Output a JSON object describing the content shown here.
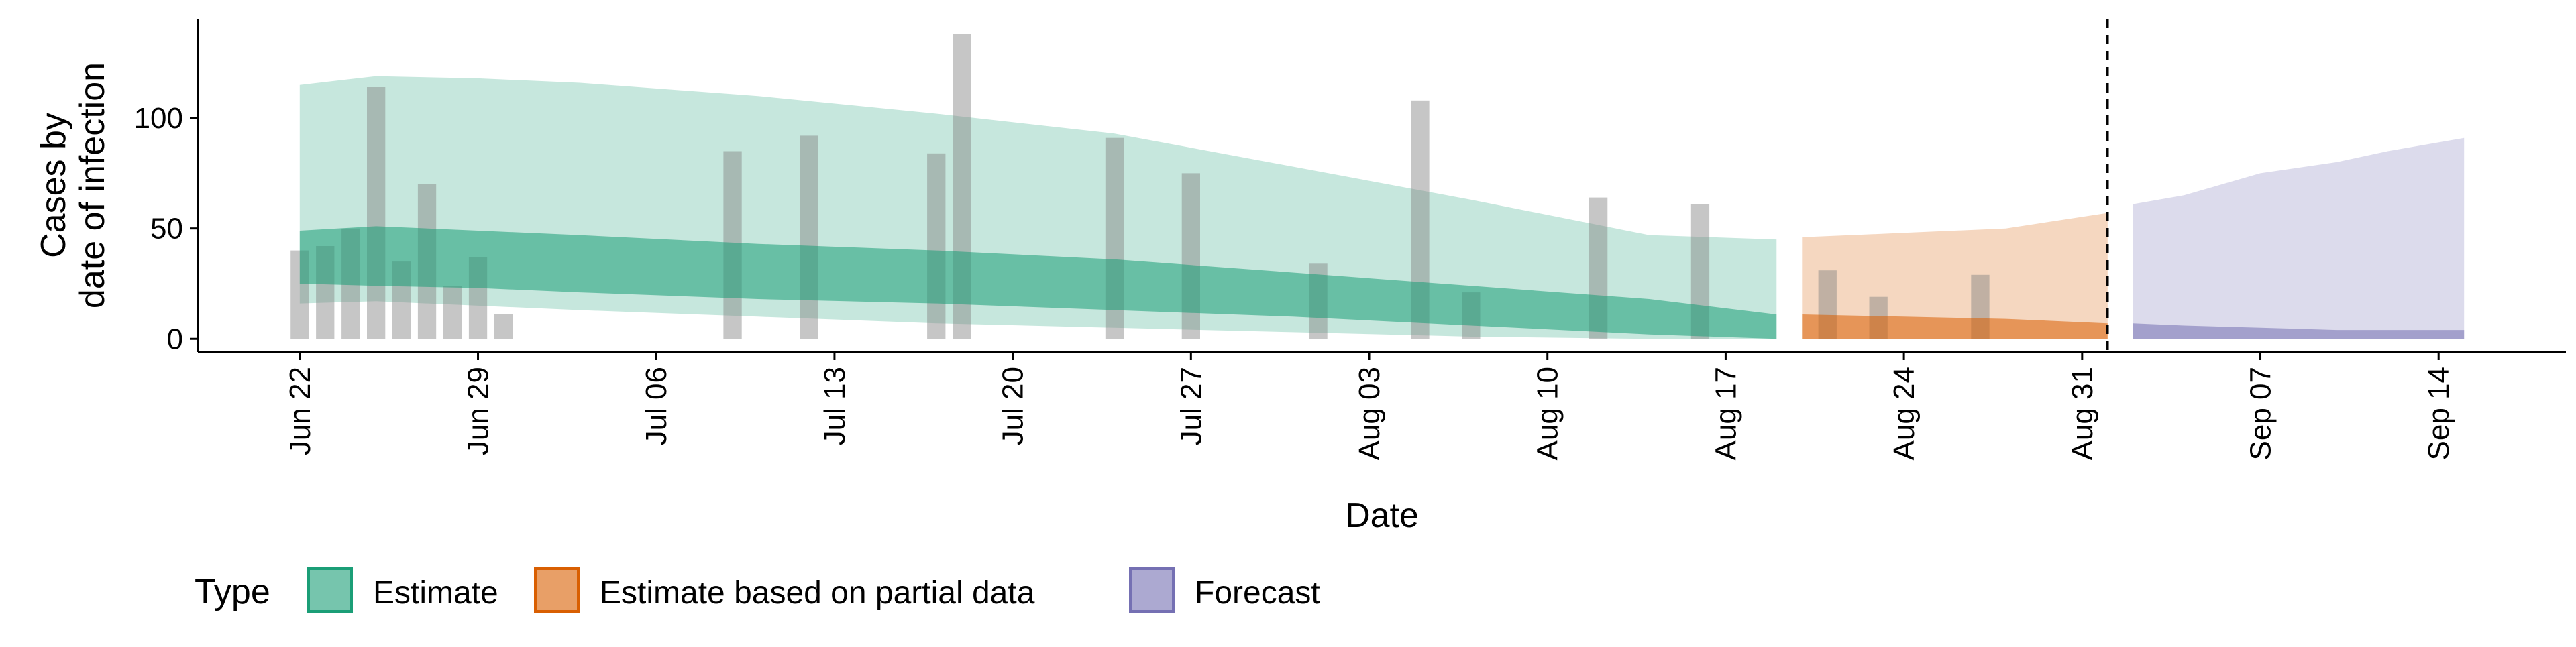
{
  "chart_data": {
    "type": "area",
    "xlabel": "Date",
    "ylabel_lines": [
      "Cases by",
      "date of infection"
    ],
    "y_ticks": [
      0,
      50,
      100
    ],
    "ylim": [
      -6,
      145
    ],
    "xlim": [
      "2020-06-18",
      "2020-09-19"
    ],
    "x_ticks": [
      {
        "date": "2020-06-22",
        "label": "Jun 22"
      },
      {
        "date": "2020-06-29",
        "label": "Jun 29"
      },
      {
        "date": "2020-07-06",
        "label": "Jul 06"
      },
      {
        "date": "2020-07-13",
        "label": "Jul 13"
      },
      {
        "date": "2020-07-20",
        "label": "Jul 20"
      },
      {
        "date": "2020-07-27",
        "label": "Jul 27"
      },
      {
        "date": "2020-08-03",
        "label": "Aug 03"
      },
      {
        "date": "2020-08-10",
        "label": "Aug 10"
      },
      {
        "date": "2020-08-17",
        "label": "Aug 17"
      },
      {
        "date": "2020-08-24",
        "label": "Aug 24"
      },
      {
        "date": "2020-08-31",
        "label": "Aug 31"
      },
      {
        "date": "2020-09-07",
        "label": "Sep 07"
      },
      {
        "date": "2020-09-14",
        "label": "Sep 14"
      }
    ],
    "vline_date": "2020-09-01",
    "grid": false,
    "legend": {
      "title": "Type",
      "placement": "bottom",
      "items": [
        {
          "label": "Estimate",
          "color": "#1B9E77"
        },
        {
          "label": "Estimate based on partial data",
          "color": "#D95F02"
        },
        {
          "label": "Forecast",
          "color": "#7570B3"
        }
      ]
    },
    "reported_cases": {
      "color": "#808080",
      "points": [
        {
          "date": "2020-06-22",
          "value": 40
        },
        {
          "date": "2020-06-23",
          "value": 42
        },
        {
          "date": "2020-06-24",
          "value": 50
        },
        {
          "date": "2020-06-25",
          "value": 114
        },
        {
          "date": "2020-06-26",
          "value": 35
        },
        {
          "date": "2020-06-27",
          "value": 70
        },
        {
          "date": "2020-06-28",
          "value": 24
        },
        {
          "date": "2020-06-29",
          "value": 37
        },
        {
          "date": "2020-06-30",
          "value": 11
        },
        {
          "date": "2020-07-09",
          "value": 85
        },
        {
          "date": "2020-07-12",
          "value": 92
        },
        {
          "date": "2020-07-17",
          "value": 84
        },
        {
          "date": "2020-07-18",
          "value": 138
        },
        {
          "date": "2020-07-24",
          "value": 91
        },
        {
          "date": "2020-07-27",
          "value": 75
        },
        {
          "date": "2020-08-01",
          "value": 34
        },
        {
          "date": "2020-08-05",
          "value": 108
        },
        {
          "date": "2020-08-07",
          "value": 21
        },
        {
          "date": "2020-08-12",
          "value": 64
        },
        {
          "date": "2020-08-16",
          "value": 61
        },
        {
          "date": "2020-08-21",
          "value": 31
        },
        {
          "date": "2020-08-23",
          "value": 19
        },
        {
          "date": "2020-08-27",
          "value": 29
        }
      ]
    },
    "series": [
      {
        "name": "Estimate",
        "color": "#1B9E77",
        "x": [
          "2020-06-22",
          "2020-06-25",
          "2020-06-29",
          "2020-07-03",
          "2020-07-10",
          "2020-07-17",
          "2020-07-24",
          "2020-07-31",
          "2020-08-07",
          "2020-08-14",
          "2020-08-19"
        ],
        "outer_upper": [
          115,
          119,
          118,
          116,
          110,
          102,
          93,
          78,
          63,
          47,
          45
        ],
        "outer_lower": [
          16,
          17,
          15,
          13,
          10,
          7,
          5,
          3,
          1,
          0,
          0
        ],
        "inner_upper": [
          49,
          51,
          49,
          47,
          43,
          40,
          36,
          30,
          24,
          18,
          11
        ],
        "inner_lower": [
          25,
          24,
          23,
          21,
          18,
          16,
          13,
          10,
          6,
          2,
          0
        ]
      },
      {
        "name": "Estimate based on partial data",
        "color": "#D95F02",
        "x": [
          "2020-08-20",
          "2020-08-24",
          "2020-08-28",
          "2020-09-01"
        ],
        "outer_upper": [
          46,
          48,
          50,
          57
        ],
        "outer_lower": [
          0,
          0,
          0,
          0
        ],
        "inner_upper": [
          11,
          10,
          9,
          7
        ],
        "inner_lower": [
          0,
          0,
          0,
          0
        ]
      },
      {
        "name": "Forecast",
        "color": "#7570B3",
        "x": [
          "2020-09-02",
          "2020-09-04",
          "2020-09-07",
          "2020-09-10",
          "2020-09-12",
          "2020-09-15"
        ],
        "outer_upper": [
          61,
          65,
          75,
          80,
          85,
          91
        ],
        "outer_lower": [
          0,
          0,
          0,
          0,
          0,
          0
        ],
        "inner_upper": [
          7,
          6,
          5,
          4,
          4,
          4
        ],
        "inner_lower": [
          0,
          0,
          0,
          0,
          0,
          0
        ]
      }
    ]
  }
}
